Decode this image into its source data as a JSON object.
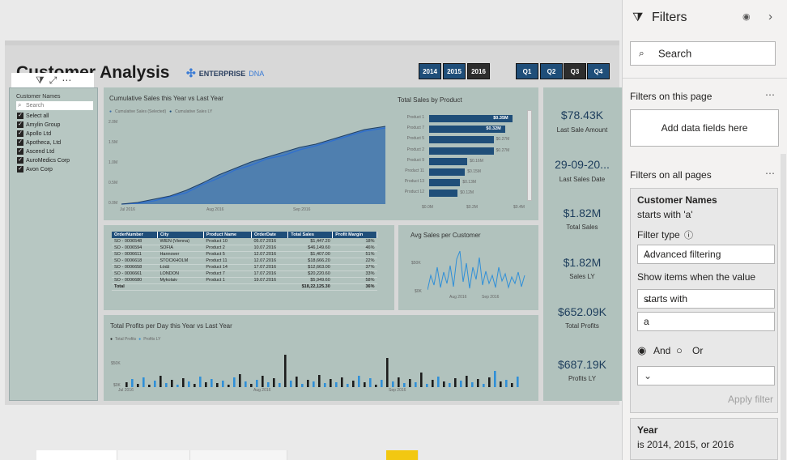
{
  "report": {
    "title": "Customer Analysis",
    "logo_brand": "ENTERPRISE",
    "logo_dna": "DNA",
    "years": [
      "2014",
      "2015",
      "2016"
    ],
    "quarters": [
      "Q1",
      "Q2",
      "Q3",
      "Q4"
    ]
  },
  "slicer": {
    "title": "Customer Names",
    "search_placeholder": "Search",
    "items": [
      "Select all",
      "Amylin Group",
      "Apollo Ltd",
      "Apotheca, Ltd",
      "Ascend Ltd",
      "AuroMedics Corp",
      "Avon Corp"
    ]
  },
  "cumulative": {
    "title": "Cumulative Sales this Year vs Last Year",
    "legend": [
      "Cumulative Sales (Selected)",
      "Cumulative Sales LY"
    ],
    "yticks": [
      "2.0M",
      "1.5M",
      "1.0M",
      "0.5M",
      "0.0M"
    ],
    "xticks": [
      "Jul 2016",
      "Aug 2016",
      "Sep 2016"
    ],
    "colors": {
      "selected": "#3f6fa8",
      "ly": "#1f4e79"
    }
  },
  "by_product": {
    "title": "Total Sales by Product",
    "categories": [
      "Product 1",
      "Product 7",
      "Product 5",
      "Product 2",
      "Product 9",
      "Product 11",
      "Product 13",
      "Product 12"
    ],
    "values": [
      0.35,
      0.32,
      0.27,
      0.27,
      0.16,
      0.15,
      0.13,
      0.12
    ],
    "labels": [
      "$0.35M",
      "$0.32M",
      "$0.27M",
      "$0.27M",
      "$0.16M",
      "$0.15M",
      "$0.13M",
      "$0.12M"
    ],
    "xticks": [
      "$0.0M",
      "$0.2M",
      "$0.4M"
    ],
    "color": "#1f4e79"
  },
  "orders": {
    "columns": [
      "OrderNumber",
      "City",
      "Product Name",
      "OrderDate",
      "Total Sales",
      "Profit Margin"
    ],
    "rows": [
      [
        "SO - 0006548",
        "WIEN (Vienna)",
        "Product 10",
        "05.07.2016",
        "$1,447.20",
        "18%"
      ],
      [
        "SO - 0006594",
        "SOFIA",
        "Product 2",
        "10.07.2016",
        "$46,149.60",
        "46%"
      ],
      [
        "SO - 0006611",
        "Hannover",
        "Product 5",
        "12.07.2016",
        "$1,407.00",
        "51%"
      ],
      [
        "SO - 0006618",
        "STOCKHOLM",
        "Product 11",
        "12.07.2016",
        "$18,666.20",
        "22%"
      ],
      [
        "SO - 0006658",
        "Łódź",
        "Product 14",
        "17.07.2016",
        "$12,663.00",
        "37%"
      ],
      [
        "SO - 0006661",
        "LONDON",
        "Product 7",
        "17.07.2016",
        "$20,220.60",
        "33%"
      ],
      [
        "SO - 0006680",
        "Mykolaiv",
        "Product 1",
        "19.07.2016",
        "$5,949.60",
        "58%"
      ]
    ],
    "total_label": "Total",
    "total_sales": "$18,22,125.30",
    "total_margin": "36%"
  },
  "avg_sales": {
    "title": "Avg Sales per Customer",
    "yticks": [
      "$50K",
      "$0K"
    ],
    "xticks": [
      "Aug 2016",
      "Sep 2016"
    ]
  },
  "profits": {
    "title": "Total Profits per Day this Year vs Last Year",
    "legend": [
      "Total Profits",
      "Profits LY"
    ],
    "yticks": [
      "$50K",
      "$0K"
    ],
    "xticks": [
      "Jul 2016",
      "Aug 2016",
      "Sep 2016"
    ],
    "colors": {
      "tp": "#1c1c1c",
      "ly": "#2f8fd8"
    }
  },
  "kpis": [
    {
      "value": "$78.43K",
      "label": "Last Sale Amount"
    },
    {
      "value": "29-09-20...",
      "label": "Last Sales Date"
    },
    {
      "value": "$1.82M",
      "label": "Total Sales"
    },
    {
      "value": "$1.82M",
      "label": "Sales LY"
    },
    {
      "value": "$652.09K",
      "label": "Total Profits"
    },
    {
      "value": "$687.19K",
      "label": "Profits LY"
    }
  ],
  "filters": {
    "title": "Filters",
    "search_placeholder": "Search",
    "on_page": "Filters on this page",
    "add_fields": "Add data fields here",
    "on_all_pages": "Filters on all pages",
    "card": {
      "name": "Customer Names",
      "summary": "starts with 'a'",
      "filter_type_label": "Filter type",
      "filter_type_value": "Advanced filtering",
      "show_items_label": "Show items when the value",
      "condition": "starts with",
      "value": "a",
      "and_label": "And",
      "or_label": "Or",
      "apply": "Apply filter"
    },
    "year_card": {
      "name": "Year",
      "summary": "is 2014, 2015, or 2016"
    }
  }
}
